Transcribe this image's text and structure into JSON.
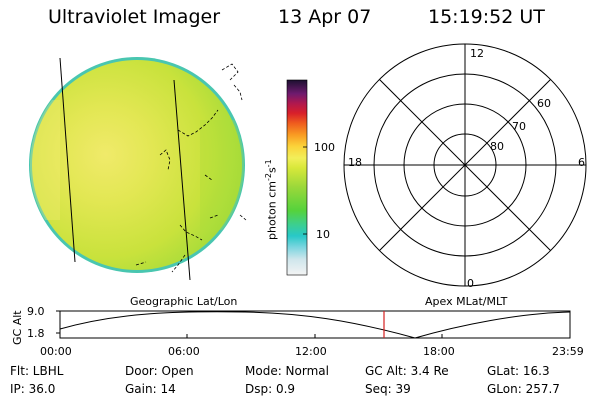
{
  "header": {
    "instrument": "Ultraviolet Imager",
    "date": "13 Apr 07",
    "time": "15:19:52 UT"
  },
  "colorbar": {
    "unit": "photon cm",
    "unit_exp": "-2",
    "unit_s": "s",
    "unit_s_exp": "-1",
    "labels": [
      "100",
      "10"
    ]
  },
  "polar": {
    "mlt_labels": [
      "12",
      "18",
      "6",
      "0"
    ],
    "lat_labels": [
      "60",
      "70",
      "80"
    ]
  },
  "orbit": {
    "left_label": "Geographic Lat/Lon",
    "right_label": "Apex MLat/MLT",
    "ylabel": "GC Alt",
    "yticks": [
      "9.0",
      "1.8"
    ],
    "xticks": [
      "00:00",
      "06:00",
      "12:00",
      "18:00",
      "23:59"
    ],
    "marker_time": "15:19:52"
  },
  "footer": {
    "row1": {
      "flt": "Flt: LBHL",
      "door": "Door: Open",
      "mode": "Mode: Normal",
      "gcalt": "GC Alt: 3.4 Re",
      "glat": "GLat:  16.3"
    },
    "row2": {
      "ip": "IP: 36.0",
      "gain": "Gain: 14",
      "dsp": "Dsp:    0.9",
      "seq": "Seq: 39",
      "glon": "GLon: 257.7"
    }
  },
  "colors": {
    "disk_main": "#cbe33a",
    "disk_bright": "#f2ea6a",
    "disk_edge": "#49c6b0",
    "marker": "#d62020"
  }
}
